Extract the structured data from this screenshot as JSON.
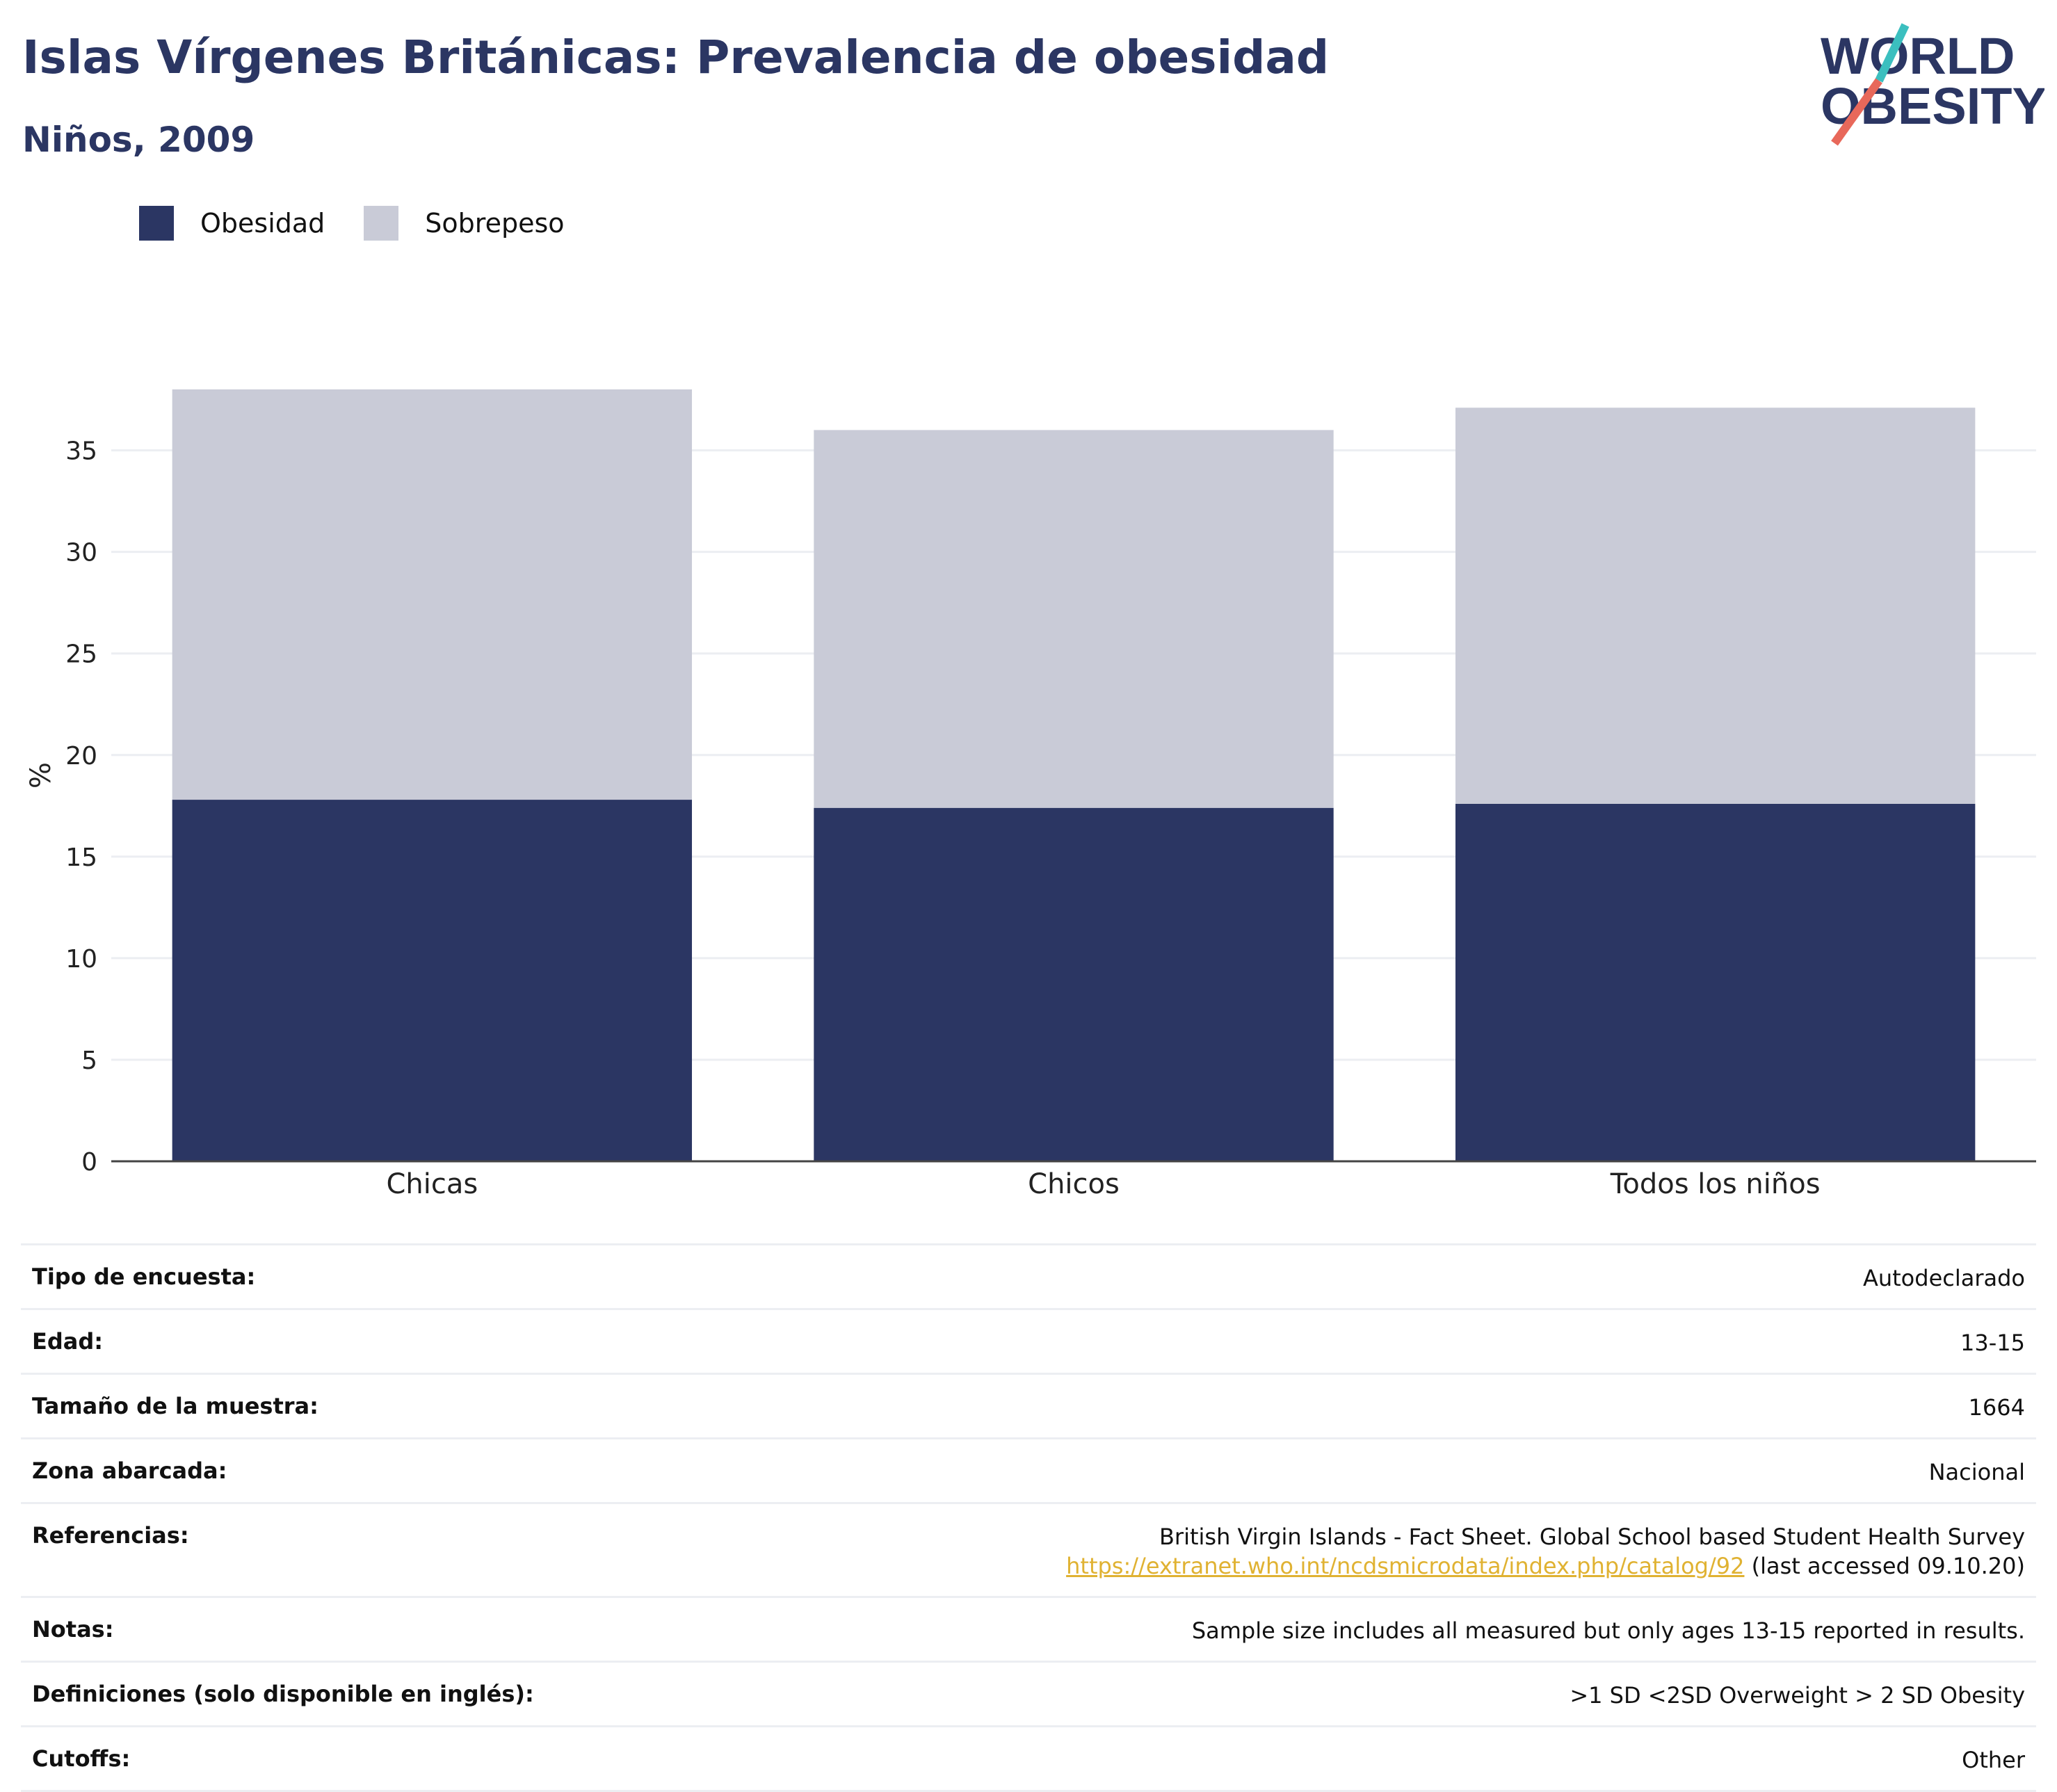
{
  "header": {
    "title": "Islas Vírgenes Británicas: Prevalencia de obesidad",
    "subtitle": "Niños, 2009"
  },
  "logo": {
    "line1": "WORLD",
    "line2": "OBESITY",
    "slash_color_top": "#3bbfbf",
    "slash_color_bottom": "#e8685a"
  },
  "legend": [
    {
      "label": "Obesidad",
      "color": "#2b3663"
    },
    {
      "label": "Sobrepeso",
      "color": "#c9cbd7"
    }
  ],
  "chart_data": {
    "type": "bar",
    "stacked": true,
    "categories": [
      "Chicas",
      "Chicos",
      "Todos los niños"
    ],
    "series": [
      {
        "name": "Obesidad",
        "color": "#2b3663",
        "values": [
          17.8,
          17.4,
          17.6
        ]
      },
      {
        "name": "Sobrepeso",
        "color": "#c9cbd7",
        "values": [
          20.2,
          18.6,
          19.5
        ]
      }
    ],
    "ylabel": "%",
    "yticks": [
      0,
      5,
      10,
      15,
      20,
      25,
      30,
      35
    ],
    "ylim": [
      0,
      38
    ],
    "grid": true,
    "legend_position": "top-left"
  },
  "info": [
    {
      "label": "Tipo de encuesta:",
      "value": "Autodeclarado"
    },
    {
      "label": "Edad:",
      "value": "13-15"
    },
    {
      "label": "Tamaño de la muestra:",
      "value": "1664"
    },
    {
      "label": "Zona abarcada:",
      "value": "Nacional"
    },
    {
      "label": "Referencias:",
      "value": "British Virgin Islands - Fact Sheet. Global School based Student Health Survey",
      "link": "https://extranet.who.int/ncdsmicrodata/index.php/catalog/92",
      "suffix": "(last accessed 09.10.20)"
    },
    {
      "label": "Notas:",
      "value": "Sample size includes all measured but only ages 13-15 reported in results."
    },
    {
      "label": "Definiciones (solo disponible en inglés):",
      "value": ">1 SD <2SD Overweight > 2 SD Obesity"
    },
    {
      "label": "Cutoffs:",
      "value": "Other"
    }
  ]
}
